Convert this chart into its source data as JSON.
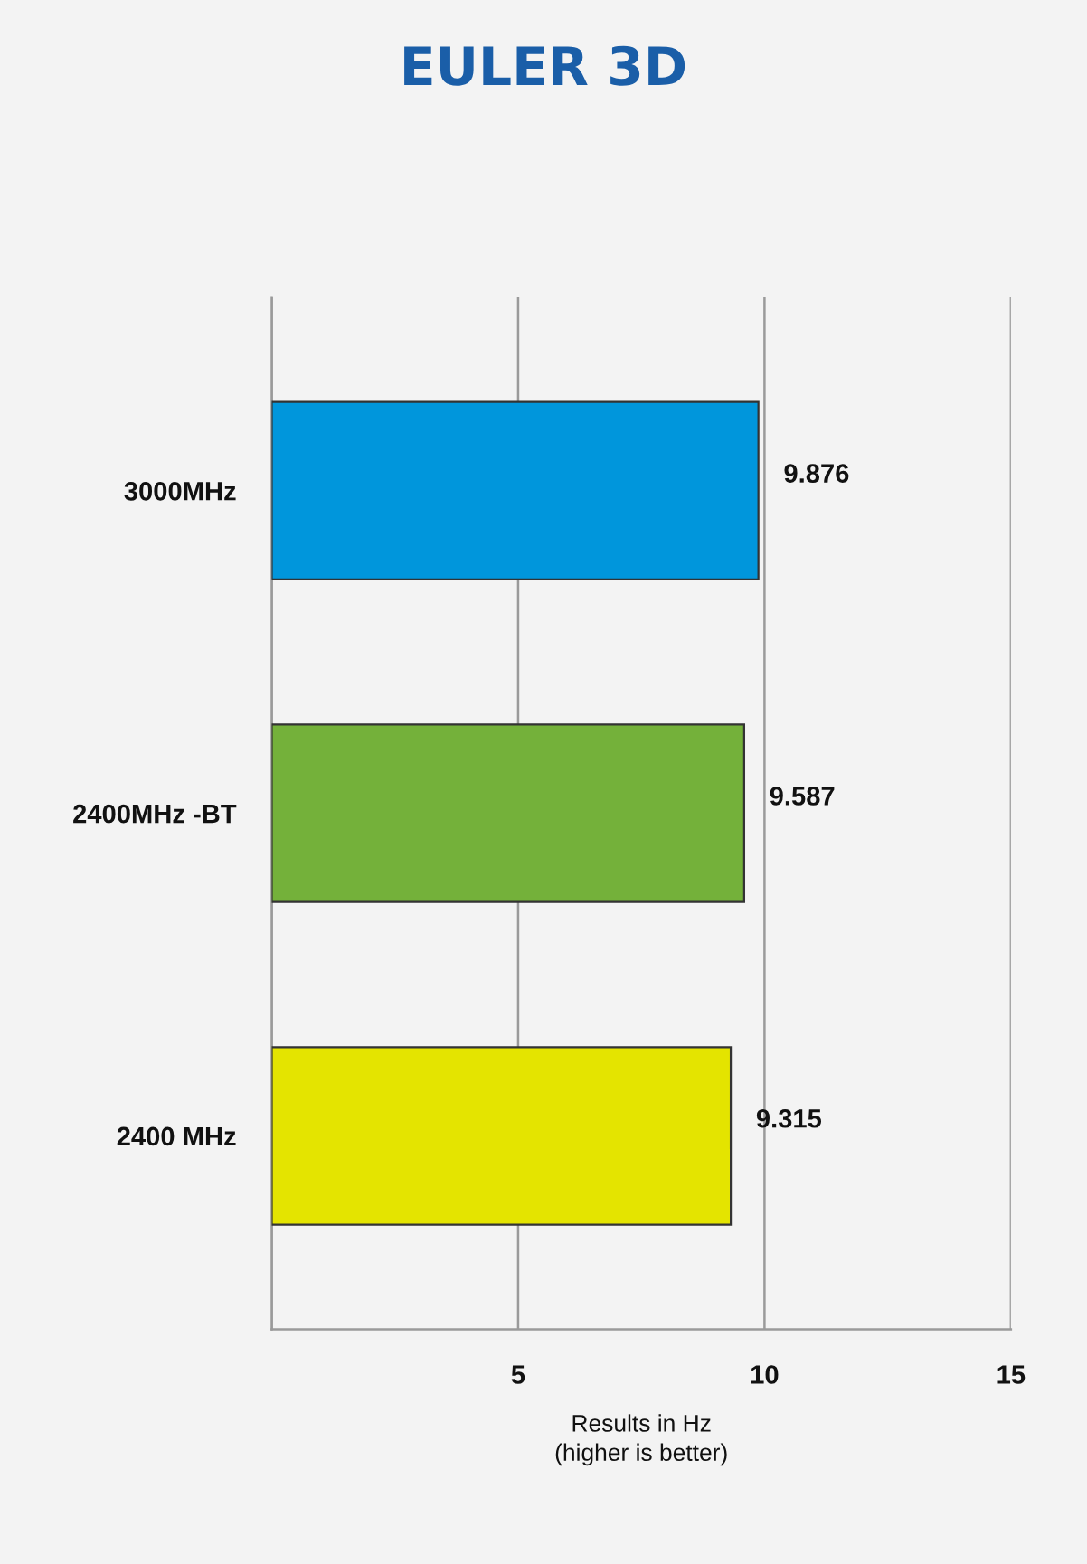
{
  "chart_data": {
    "type": "bar",
    "orientation": "horizontal",
    "title": "EULER 3D",
    "xlabel": "Results in Hz\n(higher is better)",
    "categories": [
      "3000MHz",
      "2400MHz -BT",
      "2400 MHz"
    ],
    "values": [
      9.876,
      9.587,
      9.315
    ],
    "colors": [
      "#0096dc",
      "#74b13a",
      "#e4e400"
    ],
    "xlim": [
      0,
      15
    ],
    "xticks": [
      {
        "value": 0,
        "label": null
      },
      5,
      10,
      15
    ],
    "grid": "x",
    "data_labels": true
  }
}
